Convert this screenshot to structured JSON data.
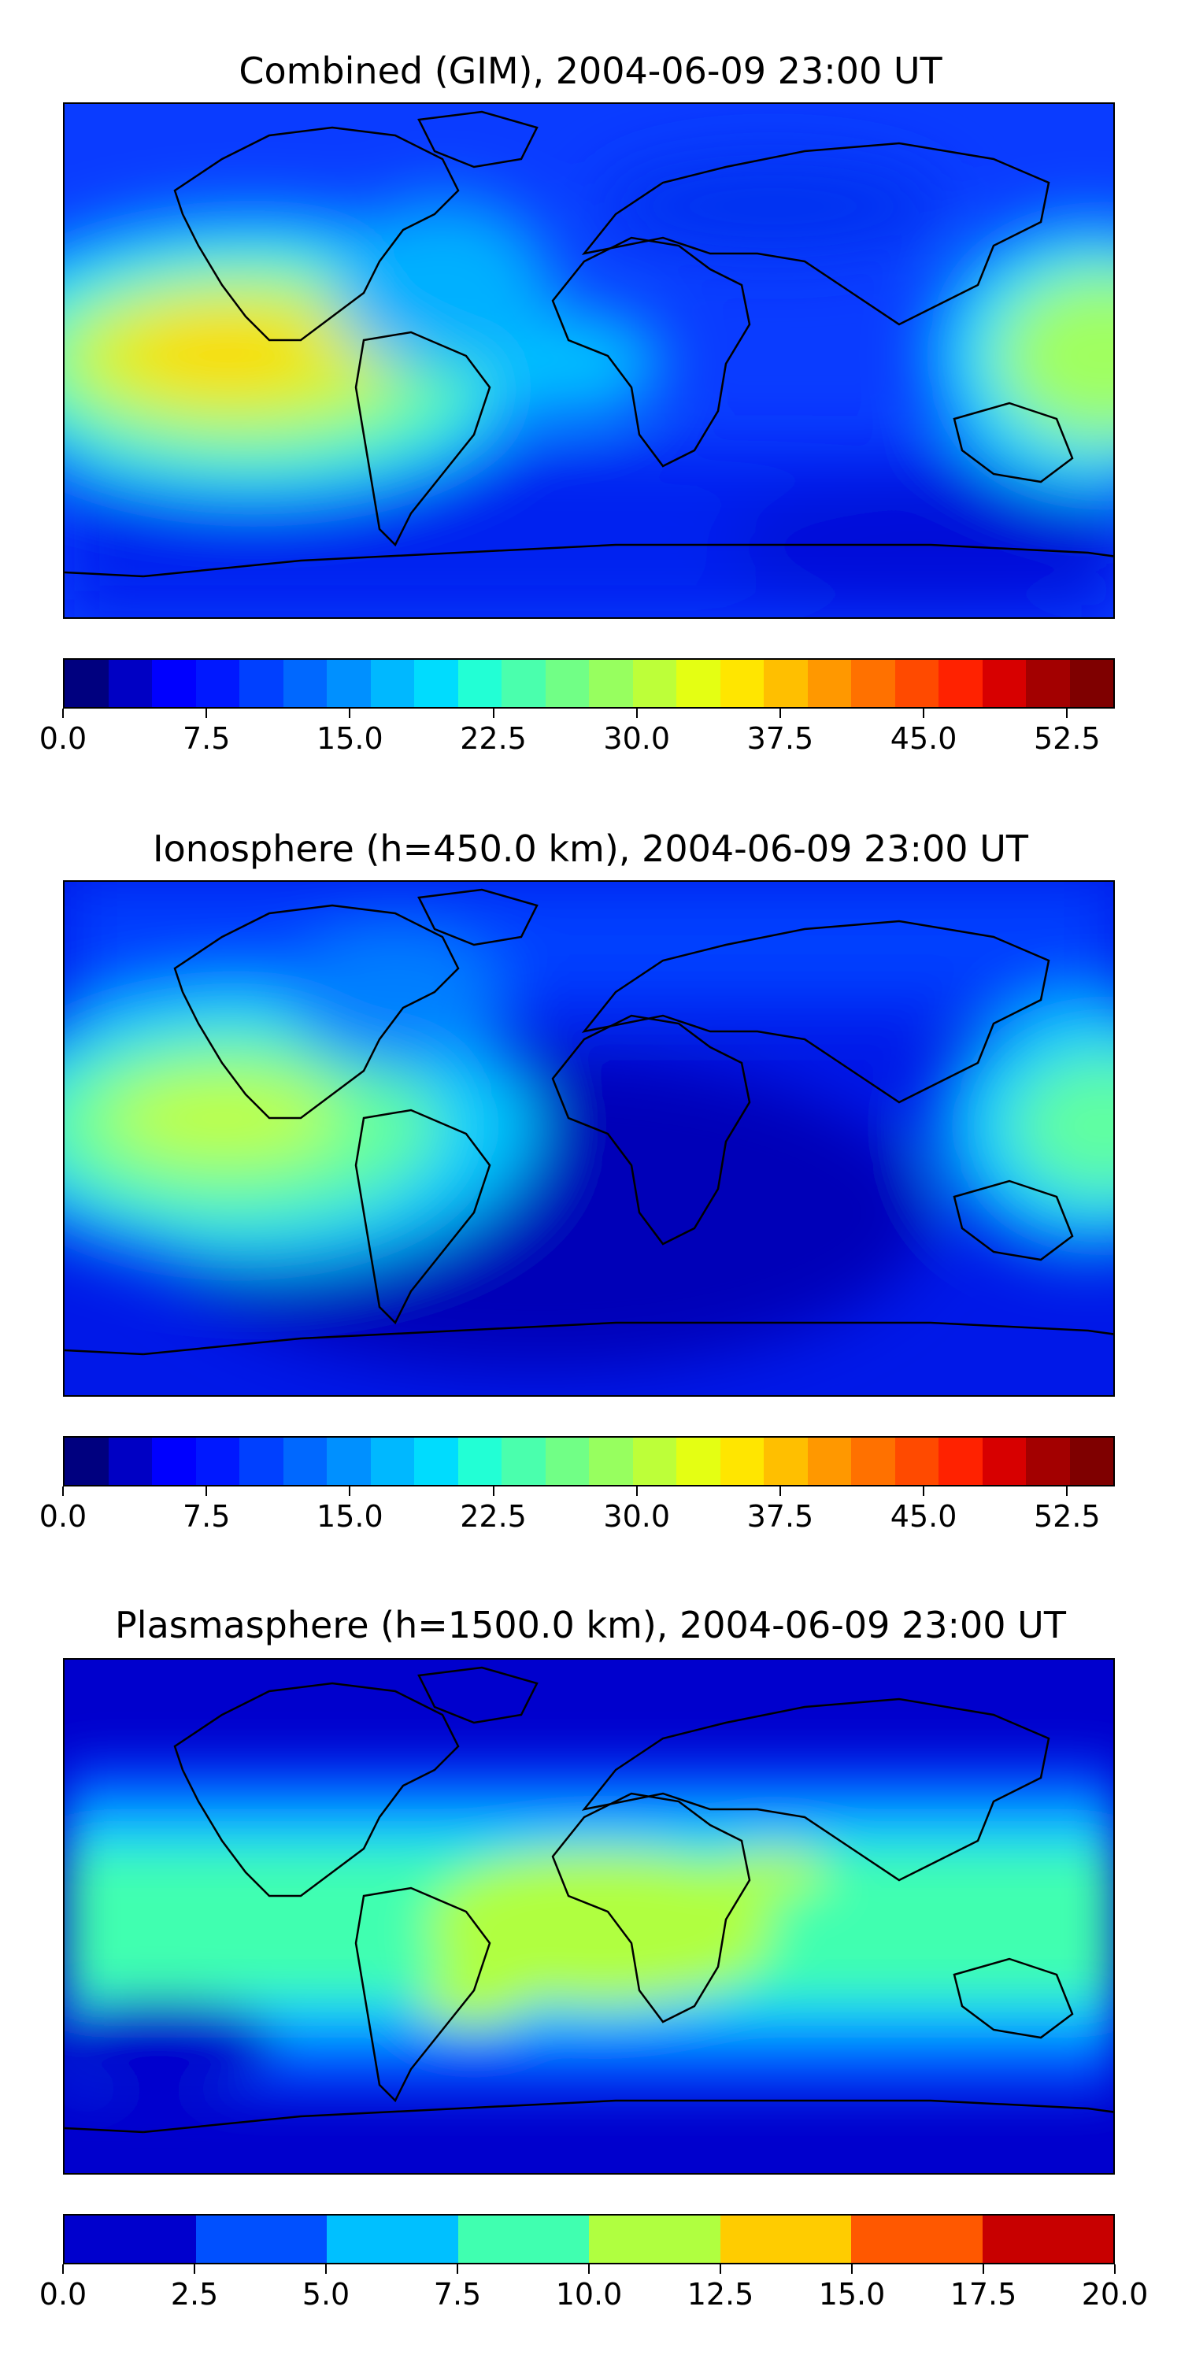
{
  "panels": [
    {
      "title": "Combined (GIM), 2004-06-09 23:00 UT",
      "colorbar": {
        "colors": [
          "#00007f",
          "#0000c4",
          "#0000ff",
          "#0018ff",
          "#0040ff",
          "#0068ff",
          "#0090ff",
          "#00b8ff",
          "#00dcfe",
          "#22ffd5",
          "#4affad",
          "#71ff86",
          "#97ff5f",
          "#bdff39",
          "#e4ff13",
          "#ffe600",
          "#ffbf00",
          "#ff9800",
          "#ff7100",
          "#ff4a00",
          "#ff2200",
          "#d70000",
          "#a30000",
          "#7f0000"
        ],
        "ticks": [
          "0.0",
          "7.5",
          "15.0",
          "22.5",
          "30.0",
          "37.5",
          "45.0",
          "52.5"
        ],
        "tick_values": [
          0,
          7.5,
          15,
          22.5,
          30,
          37.5,
          45,
          52.5
        ],
        "range": [
          0,
          55
        ]
      },
      "field": {
        "background": "#0a40ff",
        "blobs": [
          {
            "lon": -120,
            "lat": 0,
            "value": "high",
            "color": "#e0f020"
          },
          {
            "lon": 160,
            "lat": 0,
            "value": "high",
            "color": "#c8f530"
          },
          {
            "lon": -40,
            "lat": 0,
            "value": "moderate",
            "color": "#00d8ff"
          }
        ]
      }
    },
    {
      "title": "Ionosphere  (h=450.0 km), 2004-06-09 23:00 UT",
      "colorbar": {
        "colors": [
          "#00007f",
          "#0000c4",
          "#0000ff",
          "#0018ff",
          "#0040ff",
          "#0068ff",
          "#0090ff",
          "#00b8ff",
          "#00dcfe",
          "#22ffd5",
          "#4affad",
          "#71ff86",
          "#97ff5f",
          "#bdff39",
          "#e4ff13",
          "#ffe600",
          "#ffbf00",
          "#ff9800",
          "#ff7100",
          "#ff4a00",
          "#ff2200",
          "#d70000",
          "#a30000",
          "#7f0000"
        ],
        "ticks": [
          "0.0",
          "7.5",
          "15.0",
          "22.5",
          "30.0",
          "37.5",
          "45.0",
          "52.5"
        ],
        "tick_values": [
          0,
          7.5,
          15,
          22.5,
          30,
          37.5,
          45,
          52.5
        ],
        "range": [
          0,
          55
        ]
      },
      "field": {
        "background": "#0020e8",
        "blobs": [
          {
            "lon": -120,
            "lat": 5,
            "value": "high",
            "color": "#b8ff40"
          },
          {
            "lon": 165,
            "lat": 0,
            "value": "high",
            "color": "#60ff90"
          },
          {
            "lon": 30,
            "lat": -30,
            "value": "low",
            "color": "#0000b0"
          }
        ]
      }
    },
    {
      "title": "Plasmasphere (h=1500.0 km), 2004-06-09 23:00 UT",
      "colorbar": {
        "colors": [
          "#0000cd",
          "#0050ff",
          "#00c0ff",
          "#40ffb0",
          "#b0ff40",
          "#ffcc00",
          "#ff5800",
          "#c80000"
        ],
        "ticks": [
          "0.0",
          "2.5",
          "5.0",
          "7.5",
          "10.0",
          "12.5",
          "15.0",
          "17.5",
          "20.0"
        ],
        "tick_values": [
          0,
          2.5,
          5,
          7.5,
          10,
          12.5,
          15,
          17.5,
          20
        ],
        "range": [
          0,
          20
        ]
      },
      "field": {
        "background": "#0000cd",
        "blobs": [
          {
            "lon": 0,
            "lat": 0,
            "value": "band",
            "color": "#40ffb0"
          },
          {
            "lon": 10,
            "lat": 5,
            "value": "peak",
            "color": "#b0ff40"
          }
        ]
      }
    }
  ]
}
